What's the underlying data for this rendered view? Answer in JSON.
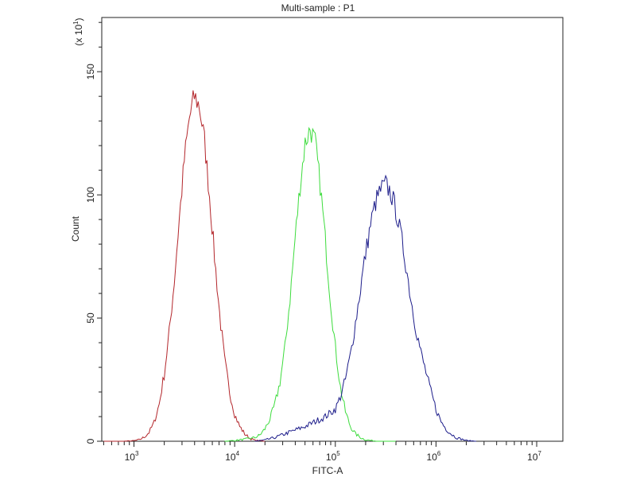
{
  "chart_data": {
    "type": "line",
    "title": "Multi-sample : P1",
    "xlabel": "FITC-A",
    "ylabel": "Count",
    "y_multiplier_label": "(x 10",
    "y_multiplier_exp": "1",
    "x_scale": "log10",
    "xlim_log10": [
      2.68,
      7.26
    ],
    "ylim": [
      0,
      172
    ],
    "x_ticks": [
      {
        "base": "10",
        "exp": "3",
        "log10": 3
      },
      {
        "base": "10",
        "exp": "4",
        "log10": 4
      },
      {
        "base": "10",
        "exp": "5",
        "log10": 5
      },
      {
        "base": "10",
        "exp": "6",
        "log10": 6
      },
      {
        "base": "10",
        "exp": "7",
        "log10": 7
      }
    ],
    "y_ticks": [
      {
        "label": "0",
        "value": 0
      },
      {
        "label": "50",
        "value": 50
      },
      {
        "label": "100",
        "value": 100
      },
      {
        "label": "150",
        "value": 150
      }
    ],
    "grid": false,
    "series": [
      {
        "name": "red-sample",
        "color": "#b3262b",
        "x_log10": [
          2.7,
          2.9,
          3.0,
          3.05,
          3.1,
          3.15,
          3.2,
          3.25,
          3.3,
          3.35,
          3.4,
          3.45,
          3.5,
          3.55,
          3.6,
          3.65,
          3.7,
          3.75,
          3.8,
          3.85,
          3.9,
          3.95,
          4.0,
          4.05,
          4.1,
          4.15,
          4.2,
          4.3
        ],
        "values": [
          0,
          0,
          0.2,
          0.6,
          1.6,
          3.6,
          7.6,
          15,
          27,
          44,
          65,
          90,
          114,
          131,
          140,
          136,
          122,
          100,
          75,
          52,
          33,
          20,
          11,
          6,
          3,
          1.2,
          0.4,
          0
        ]
      },
      {
        "name": "green-sample",
        "color": "#3ddc3d",
        "x_log10": [
          3.9,
          4.0,
          4.1,
          4.2,
          4.25,
          4.3,
          4.35,
          4.4,
          4.45,
          4.5,
          4.55,
          4.6,
          4.65,
          4.7,
          4.75,
          4.8,
          4.85,
          4.9,
          4.95,
          5.0,
          5.05,
          5.1,
          5.15,
          5.2,
          5.25,
          5.3,
          5.35,
          5.4,
          5.45,
          5.5,
          5.6
        ],
        "values": [
          0,
          0.3,
          0.8,
          1.5,
          2.5,
          5,
          9,
          15,
          24,
          38,
          58,
          82,
          104,
          121,
          127,
          121,
          104,
          82,
          58,
          38,
          22,
          12,
          6,
          3,
          1.5,
          0.6,
          0.3,
          0.1,
          0,
          0,
          0
        ]
      },
      {
        "name": "blue-sample",
        "color": "#1c1c8a",
        "x_log10": [
          4.2,
          4.3,
          4.4,
          4.5,
          4.6,
          4.7,
          4.8,
          4.9,
          5.0,
          5.05,
          5.1,
          5.15,
          5.2,
          5.25,
          5.3,
          5.35,
          5.4,
          5.45,
          5.5,
          5.55,
          5.6,
          5.65,
          5.7,
          5.75,
          5.8,
          5.85,
          5.9,
          5.95,
          6.0,
          6.05,
          6.1,
          6.15,
          6.2,
          6.3,
          6.4
        ],
        "values": [
          0,
          0.5,
          1.5,
          3,
          4.5,
          6,
          8,
          10,
          13,
          18,
          25,
          35,
          48,
          62,
          76,
          88,
          97,
          102,
          104,
          101,
          94,
          84,
          72,
          58,
          46,
          36,
          28,
          20,
          13,
          8,
          5,
          3,
          1.5,
          0.3,
          0
        ]
      }
    ]
  }
}
